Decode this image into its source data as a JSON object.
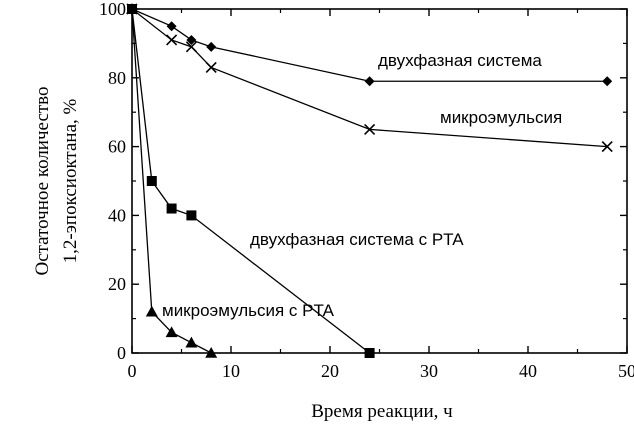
{
  "chart_data": {
    "type": "line",
    "xlabel": "Время реакции, ч",
    "ylabel": [
      "Остаточное количество",
      "1,2-эпоксиоктана, %"
    ],
    "xlim": [
      0,
      50
    ],
    "ylim": [
      0,
      100
    ],
    "xticks": [
      0,
      10,
      20,
      30,
      40,
      50
    ],
    "yticks": [
      0,
      20,
      40,
      60,
      80,
      100
    ],
    "xtick_labels": [
      "0",
      "10",
      "20",
      "30",
      "40",
      "50"
    ],
    "ytick_labels": [
      "0",
      "20",
      "40",
      "60",
      "80",
      "100"
    ],
    "grid": false,
    "legend": "none",
    "series": [
      {
        "name": "двухфазная система",
        "marker": "diamond",
        "x": [
          0,
          4,
          6,
          8,
          24,
          48
        ],
        "y": [
          100,
          95,
          91,
          89,
          79,
          79
        ]
      },
      {
        "name": "микроэмульсия",
        "marker": "x",
        "x": [
          0,
          4,
          6,
          8,
          24,
          48
        ],
        "y": [
          100,
          91,
          89,
          83,
          65,
          60
        ]
      },
      {
        "name": "двухфазная система с PTA",
        "marker": "square",
        "x": [
          0,
          2,
          4,
          6,
          24
        ],
        "y": [
          100,
          50,
          42,
          40,
          0
        ]
      },
      {
        "name": "микроэмульсия с PTA",
        "marker": "triangle",
        "x": [
          0,
          2,
          4,
          6,
          8
        ],
        "y": [
          100,
          12,
          6,
          3,
          0
        ]
      }
    ]
  }
}
